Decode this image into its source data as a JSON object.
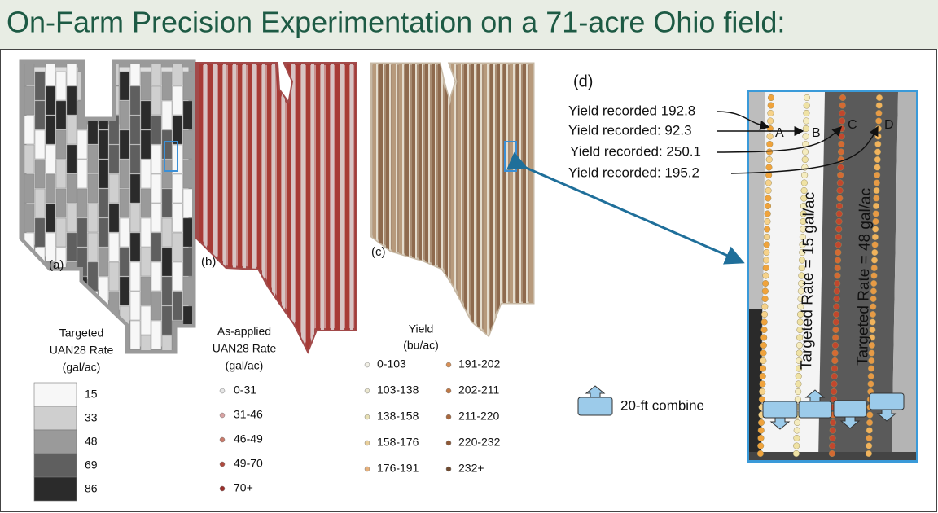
{
  "title": "On-Farm Precision Experimentation on a 71-acre Ohio field:",
  "maps": {
    "a": "(a)",
    "b": "(b)",
    "c": "(c)"
  },
  "legends": [
    {
      "title_lines": [
        "Targeted",
        "UAN28 Rate",
        "(gal/ac)"
      ],
      "items": [
        "15",
        "33",
        "48",
        "69",
        "86"
      ],
      "colors": [
        "#f7f7f7",
        "#cfcfcf",
        "#9a9a9a",
        "#5f5f5f",
        "#2b2b2b"
      ]
    },
    {
      "title_lines": [
        "As-applied",
        "UAN28 Rate",
        "(gal/ac)"
      ],
      "items": [
        "0-31",
        "31-46",
        "46-49",
        "49-70",
        "70+"
      ],
      "colors": [
        "#e6e6e6",
        "#d9a3a3",
        "#c97a6a",
        "#b04a3e",
        "#9a2f2a"
      ]
    },
    {
      "title_lines": [
        "Yield",
        "(bu/ac)"
      ],
      "items": [
        "0-103",
        "103-138",
        "138-158",
        "158-176",
        "176-191",
        "191-202",
        "202-211",
        "211-220",
        "220-232",
        "232+"
      ],
      "colors": [
        "#f2f0e6",
        "#ece8d0",
        "#e8e0b4",
        "#e9cf9a",
        "#e7b07a",
        "#d88f55",
        "#c07845",
        "#a8683e",
        "#8e5836",
        "#6e4a30"
      ]
    }
  ],
  "detail": {
    "label": "(d)",
    "annotations": [
      "Yield recorded 192.8",
      "Yield recorded:  92.3",
      "Yield recorded:  250.1",
      "Yield recorded:  195.2"
    ],
    "points": [
      "A",
      "B",
      "C",
      "D"
    ],
    "rate_labels": [
      "Targeted Rate = 15 gal/ac",
      "Targeted Rate = 48 gal/ac"
    ],
    "combine_label": "20-ft combine"
  }
}
